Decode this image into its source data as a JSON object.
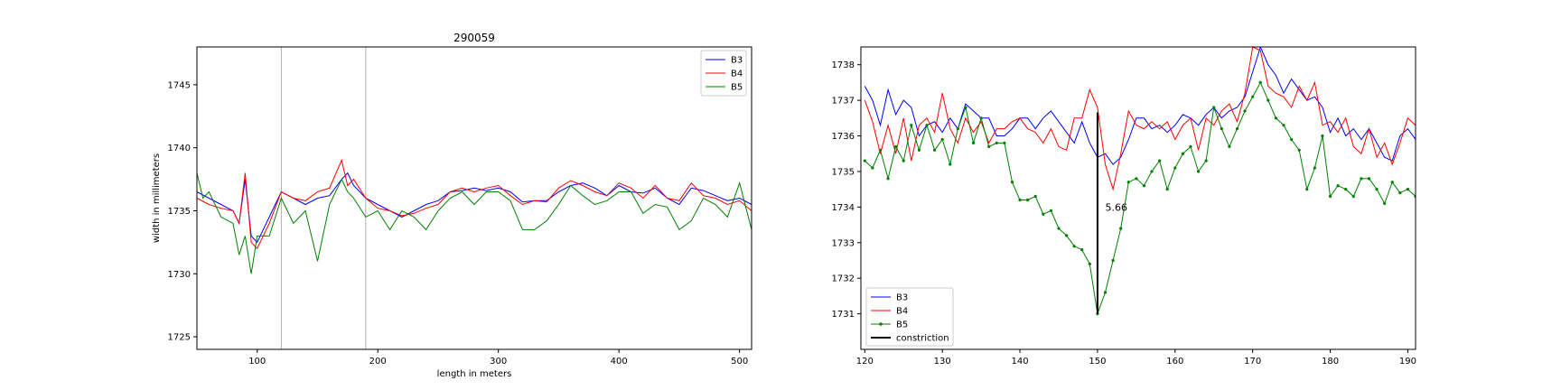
{
  "chart_data": [
    {
      "type": "line",
      "title": "290059",
      "xlabel": "length in meters",
      "ylabel": "width in millimeters",
      "xlim": [
        50,
        510
      ],
      "ylim": [
        1724,
        1748
      ],
      "xticks": [
        100,
        200,
        300,
        400,
        500
      ],
      "yticks": [
        1725,
        1730,
        1735,
        1740,
        1745
      ],
      "legend_position": "top-right",
      "vertical_lines": [
        120,
        190
      ],
      "series": [
        {
          "name": "B3",
          "color": "#0000ff",
          "x": [
            50,
            60,
            70,
            80,
            85,
            90,
            95,
            100,
            110,
            120,
            130,
            140,
            150,
            160,
            170,
            175,
            180,
            190,
            200,
            210,
            220,
            230,
            240,
            250,
            260,
            270,
            280,
            290,
            300,
            310,
            320,
            330,
            340,
            350,
            360,
            370,
            380,
            390,
            400,
            410,
            420,
            430,
            440,
            450,
            460,
            470,
            480,
            490,
            500,
            510
          ],
          "y": [
            1736.5,
            1736,
            1735.5,
            1735,
            1734,
            1737.5,
            1733,
            1732.5,
            1734.5,
            1736.5,
            1736,
            1735.5,
            1736,
            1736.2,
            1737.5,
            1738,
            1737,
            1736,
            1735.5,
            1735,
            1734.5,
            1735,
            1735.5,
            1735.8,
            1736.5,
            1736.6,
            1736.8,
            1736.6,
            1736.8,
            1736.5,
            1735.7,
            1735.8,
            1735.8,
            1736.5,
            1737,
            1737.2,
            1736.8,
            1736.2,
            1737,
            1736.5,
            1736.4,
            1736.8,
            1736,
            1735.5,
            1736.8,
            1736.6,
            1736.2,
            1735.8,
            1736,
            1735.5
          ]
        },
        {
          "name": "B4",
          "color": "#ff0000",
          "x": [
            50,
            60,
            70,
            80,
            85,
            90,
            95,
            100,
            110,
            120,
            130,
            140,
            150,
            160,
            170,
            175,
            180,
            190,
            200,
            210,
            220,
            230,
            240,
            250,
            260,
            270,
            280,
            290,
            300,
            310,
            320,
            330,
            340,
            350,
            360,
            370,
            380,
            390,
            400,
            410,
            420,
            430,
            440,
            450,
            460,
            470,
            480,
            490,
            500,
            510
          ],
          "y": [
            1736,
            1735.5,
            1735.2,
            1735,
            1734,
            1738,
            1732.5,
            1732,
            1734,
            1736.5,
            1736,
            1735.8,
            1736.5,
            1736.8,
            1739,
            1737,
            1737.5,
            1736,
            1735.2,
            1735,
            1734.6,
            1734.8,
            1735.2,
            1735.5,
            1736.5,
            1736.8,
            1736.5,
            1736.8,
            1737,
            1736.2,
            1735.5,
            1735.8,
            1735.7,
            1736.8,
            1737.4,
            1737,
            1736.5,
            1736.2,
            1737.2,
            1736.8,
            1736,
            1737,
            1736,
            1735.8,
            1737.2,
            1736.2,
            1736,
            1735.5,
            1735.8,
            1735
          ]
        },
        {
          "name": "B5",
          "color": "#008000",
          "x": [
            50,
            55,
            60,
            70,
            80,
            85,
            90,
            95,
            100,
            110,
            120,
            130,
            140,
            150,
            160,
            170,
            175,
            180,
            190,
            200,
            210,
            220,
            230,
            240,
            250,
            260,
            270,
            280,
            290,
            300,
            310,
            320,
            330,
            340,
            350,
            360,
            370,
            380,
            390,
            400,
            410,
            420,
            430,
            440,
            450,
            460,
            470,
            480,
            490,
            500,
            510
          ],
          "y": [
            1738,
            1736,
            1736.5,
            1734.5,
            1734,
            1731.5,
            1733,
            1730,
            1733,
            1733,
            1736,
            1734,
            1735,
            1731,
            1735.5,
            1737.5,
            1736.5,
            1736,
            1734.5,
            1735,
            1733.5,
            1735,
            1734.5,
            1733.5,
            1735,
            1736,
            1736.5,
            1735.5,
            1736.5,
            1736.5,
            1735.8,
            1733.5,
            1733.5,
            1734.2,
            1735.5,
            1737,
            1736.2,
            1735.5,
            1735.8,
            1736.5,
            1736.5,
            1734.8,
            1735.5,
            1735.3,
            1733.5,
            1734.2,
            1736,
            1735.5,
            1734.5,
            1737.2,
            1733.5
          ]
        }
      ]
    },
    {
      "type": "line",
      "title": "",
      "xlabel": "",
      "ylabel": "",
      "xlim": [
        119.5,
        191
      ],
      "ylim": [
        1730,
        1738.5
      ],
      "xticks": [
        120,
        130,
        140,
        150,
        160,
        170,
        180,
        190
      ],
      "yticks": [
        1731,
        1732,
        1733,
        1734,
        1735,
        1736,
        1737,
        1738
      ],
      "legend_position": "bottom-left",
      "annotation": {
        "text": "5.66",
        "x": 151,
        "y": 1734
      },
      "constriction": {
        "x": 150,
        "y_start": 1731,
        "y_end": 1736.66
      },
      "series": [
        {
          "name": "B3",
          "color": "#0000ff",
          "markers": false,
          "x": [
            120,
            121,
            122,
            123,
            124,
            125,
            126,
            127,
            128,
            129,
            130,
            131,
            132,
            133,
            134,
            135,
            136,
            137,
            138,
            139,
            140,
            141,
            142,
            143,
            144,
            145,
            146,
            147,
            148,
            149,
            150,
            151,
            152,
            153,
            154,
            155,
            156,
            157,
            158,
            159,
            160,
            161,
            162,
            163,
            164,
            165,
            166,
            167,
            168,
            169,
            170,
            171,
            172,
            173,
            174,
            175,
            176,
            177,
            178,
            179,
            180,
            181,
            182,
            183,
            184,
            185,
            186,
            187,
            188,
            189,
            190,
            191
          ],
          "y": [
            1737.4,
            1737,
            1736.3,
            1737.3,
            1736.6,
            1737,
            1736.8,
            1736,
            1736.3,
            1736.4,
            1736.1,
            1736.5,
            1736.2,
            1736.9,
            1736.7,
            1736.5,
            1736.5,
            1736,
            1736,
            1736.2,
            1736.5,
            1736.5,
            1736.2,
            1736.5,
            1736.7,
            1736.4,
            1736.1,
            1735.8,
            1736.4,
            1735.8,
            1735.4,
            1735.5,
            1735.2,
            1735.4,
            1735.9,
            1736.5,
            1736.5,
            1736.2,
            1736.3,
            1736.1,
            1736.3,
            1736.6,
            1736.5,
            1736.3,
            1736.6,
            1736.8,
            1736.5,
            1736.7,
            1736.8,
            1737.1,
            1737.8,
            1738.5,
            1738,
            1737.7,
            1737.2,
            1737.6,
            1737.3,
            1737,
            1737.1,
            1736.8,
            1736.1,
            1736.5,
            1736,
            1736.2,
            1735.9,
            1736.2,
            1735.8,
            1735.4,
            1735.3,
            1736,
            1736.2,
            1735.9
          ]
        },
        {
          "name": "B4",
          "color": "#ff0000",
          "markers": false,
          "x": [
            120,
            121,
            122,
            123,
            124,
            125,
            126,
            127,
            128,
            129,
            130,
            131,
            132,
            133,
            134,
            135,
            136,
            137,
            138,
            139,
            140,
            141,
            142,
            143,
            144,
            145,
            146,
            147,
            148,
            149,
            150,
            151,
            152,
            153,
            154,
            155,
            156,
            157,
            158,
            159,
            160,
            161,
            162,
            163,
            164,
            165,
            166,
            167,
            168,
            169,
            170,
            171,
            172,
            173,
            174,
            175,
            176,
            177,
            178,
            179,
            180,
            181,
            182,
            183,
            184,
            185,
            186,
            187,
            188,
            189,
            190,
            191
          ],
          "y": [
            1737,
            1736.4,
            1735.5,
            1736.3,
            1735.5,
            1736.5,
            1735.3,
            1736.3,
            1736.5,
            1736.1,
            1737.2,
            1736.2,
            1735.8,
            1736.5,
            1736.1,
            1736.4,
            1735.8,
            1736.2,
            1736.2,
            1736.4,
            1736.5,
            1736.2,
            1736.1,
            1735.8,
            1736.2,
            1735.7,
            1735.6,
            1736.5,
            1736.5,
            1737.3,
            1736.8,
            1735.2,
            1734.5,
            1735.5,
            1736.7,
            1736.3,
            1736.2,
            1736.4,
            1736.2,
            1736.4,
            1735.9,
            1736.3,
            1736.5,
            1735.6,
            1736.5,
            1736.3,
            1736.7,
            1736.9,
            1736.4,
            1737.2,
            1738.5,
            1738.4,
            1737.4,
            1737.2,
            1737.1,
            1736.8,
            1737.4,
            1737,
            1737.5,
            1736.3,
            1736.4,
            1736.1,
            1736.5,
            1735.7,
            1735.5,
            1736.2,
            1735.4,
            1735.8,
            1735.2,
            1735.8,
            1736.5,
            1736.3
          ]
        },
        {
          "name": "B5",
          "color": "#008000",
          "markers": true,
          "x": [
            120,
            121,
            122,
            123,
            124,
            125,
            126,
            127,
            128,
            129,
            130,
            131,
            132,
            133,
            134,
            135,
            136,
            137,
            138,
            139,
            140,
            141,
            142,
            143,
            144,
            145,
            146,
            147,
            148,
            149,
            150,
            151,
            152,
            153,
            154,
            155,
            156,
            157,
            158,
            159,
            160,
            161,
            162,
            163,
            164,
            165,
            166,
            167,
            168,
            169,
            170,
            171,
            172,
            173,
            174,
            175,
            176,
            177,
            178,
            179,
            180,
            181,
            182,
            183,
            184,
            185,
            186,
            187,
            188,
            189,
            190,
            191
          ],
          "y": [
            1735.3,
            1735.1,
            1735.6,
            1734.8,
            1735.7,
            1735.3,
            1736.3,
            1735.6,
            1736.3,
            1735.6,
            1735.9,
            1735.2,
            1736.2,
            1736.8,
            1735.8,
            1736.5,
            1735.7,
            1735.8,
            1735.8,
            1734.7,
            1734.2,
            1734.2,
            1734.3,
            1733.8,
            1733.9,
            1733.4,
            1733.2,
            1732.9,
            1732.8,
            1732.4,
            1731,
            1731.6,
            1732.5,
            1733.4,
            1734.7,
            1734.8,
            1734.6,
            1735,
            1735.3,
            1734.5,
            1735.1,
            1735.5,
            1735.7,
            1735,
            1735.3,
            1736.8,
            1736.2,
            1735.7,
            1736.2,
            1736.7,
            1737.1,
            1737.5,
            1737,
            1736.5,
            1736.3,
            1735.9,
            1735.6,
            1734.5,
            1735.1,
            1736,
            1734.3,
            1734.6,
            1734.5,
            1734.3,
            1734.8,
            1734.8,
            1734.5,
            1734.1,
            1734.7,
            1734.4,
            1734.5,
            1734.3
          ]
        },
        {
          "name": "constriction",
          "color": "#000000",
          "markers": false,
          "x": [],
          "y": []
        }
      ]
    }
  ]
}
